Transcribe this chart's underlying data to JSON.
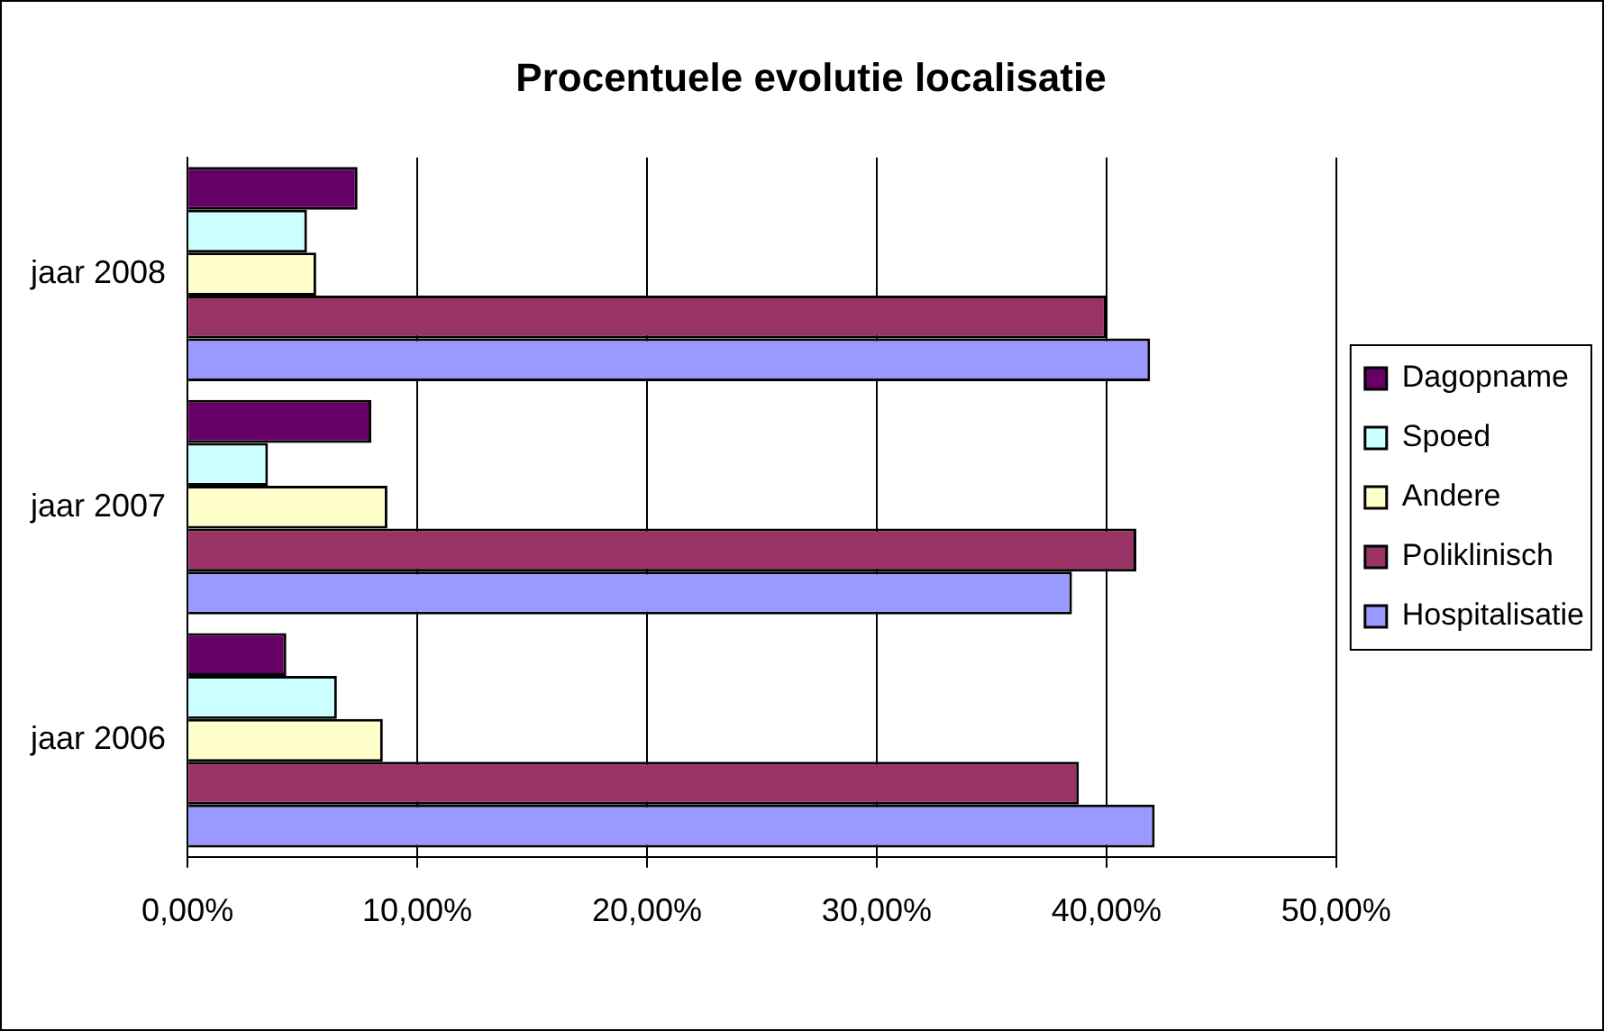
{
  "chart_data": {
    "type": "bar",
    "orientation": "horizontal",
    "title": "Procentuele evolutie localisatie",
    "categories": [
      "jaar 2008",
      "jaar 2007",
      "jaar 2006"
    ],
    "series": [
      {
        "name": "Dagopname",
        "color": "#660066",
        "values": [
          7.4,
          8.0,
          4.3
        ]
      },
      {
        "name": "Spoed",
        "color": "#ccffff",
        "values": [
          5.2,
          3.5,
          6.5
        ]
      },
      {
        "name": "Andere",
        "color": "#ffffcc",
        "values": [
          5.6,
          8.7,
          8.5
        ]
      },
      {
        "name": "Poliklinisch",
        "color": "#993366",
        "values": [
          40.0,
          41.3,
          38.8
        ]
      },
      {
        "name": "Hospitalisatie",
        "color": "#9999ff",
        "values": [
          41.9,
          38.5,
          42.1
        ]
      }
    ],
    "xlim": [
      0,
      50
    ],
    "xticks": [
      {
        "value": 0,
        "label": "0,00%"
      },
      {
        "value": 10,
        "label": "10,00%"
      },
      {
        "value": 20,
        "label": "20,00%"
      },
      {
        "value": 30,
        "label": "30,00%"
      },
      {
        "value": 40,
        "label": "40,00%"
      },
      {
        "value": 50,
        "label": "50,00%"
      }
    ],
    "grid": "x",
    "legend": "right"
  }
}
